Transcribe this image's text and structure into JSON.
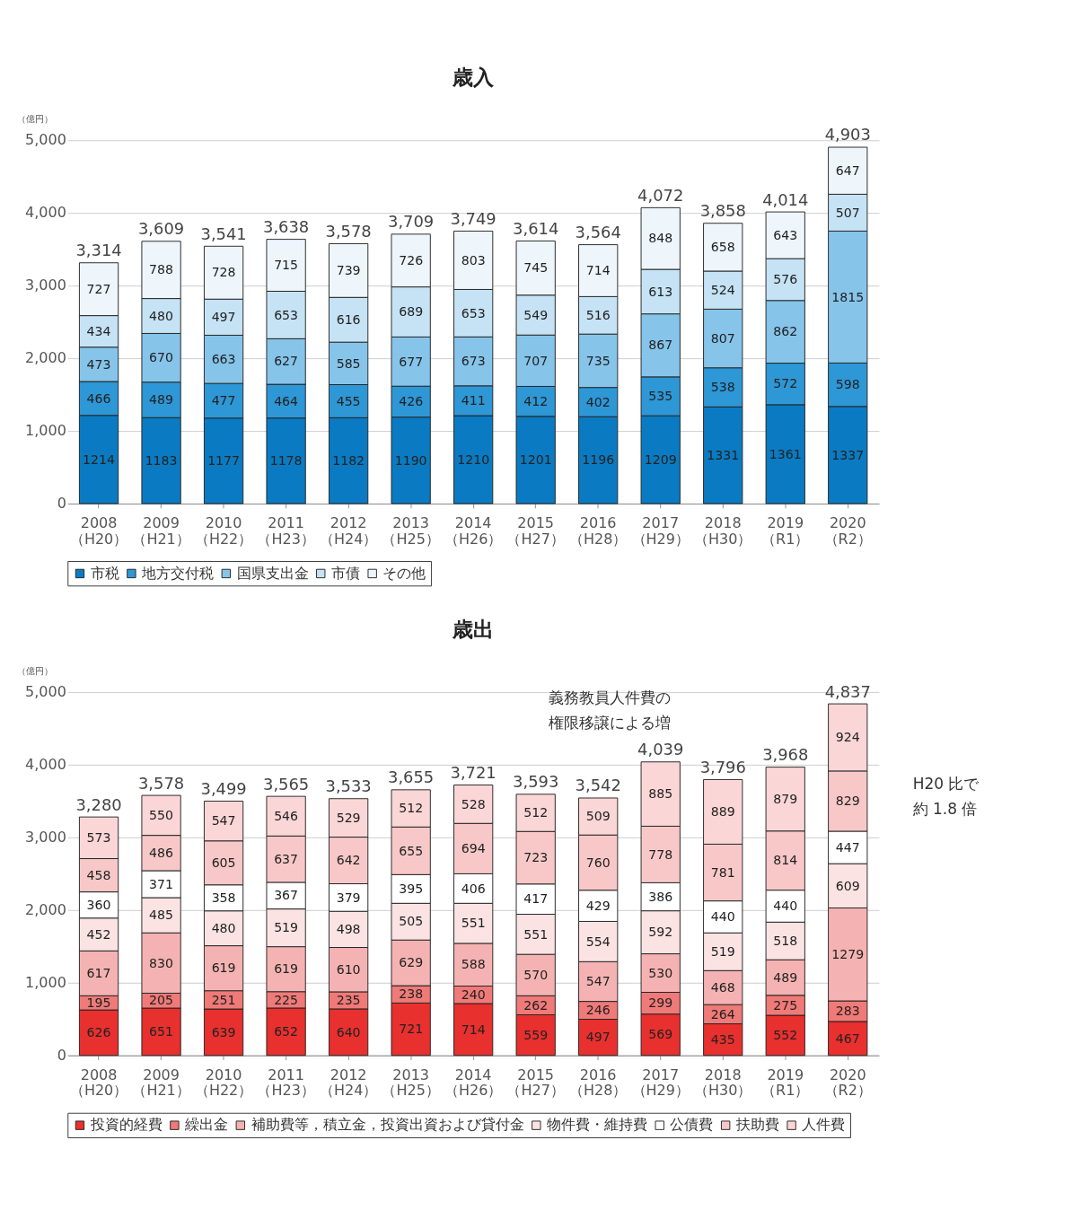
{
  "chart_data": [
    {
      "type": "bar",
      "stacked": true,
      "title": "歳入",
      "ylabel": "（億円）",
      "categories": [
        "2008\n（H20）",
        "2009\n（H21）",
        "2010\n（H22）",
        "2011\n（H23）",
        "2012\n（H24）",
        "2013\n（H25）",
        "2014\n（H26）",
        "2015\n（H27）",
        "2016\n（H28）",
        "2017\n（H29）",
        "2018\n（H30）",
        "2019\n（R1）",
        "2020\n（R2）"
      ],
      "series": [
        {
          "name": "市税",
          "color": "#0a7bc2",
          "values": [
            1214,
            1183,
            1177,
            1178,
            1182,
            1190,
            1210,
            1201,
            1196,
            1209,
            1331,
            1361,
            1337
          ]
        },
        {
          "name": "地方交付税",
          "color": "#2e97d6",
          "values": [
            466,
            489,
            477,
            464,
            455,
            426,
            411,
            412,
            402,
            535,
            538,
            572,
            598
          ]
        },
        {
          "name": "国県支出金",
          "color": "#86c4ea",
          "values": [
            473,
            670,
            663,
            627,
            585,
            677,
            673,
            707,
            735,
            867,
            807,
            862,
            1815
          ]
        },
        {
          "name": "市債",
          "color": "#c6e3f5",
          "values": [
            434,
            480,
            497,
            653,
            616,
            689,
            653,
            549,
            516,
            613,
            524,
            576,
            507
          ]
        },
        {
          "name": "その他",
          "color": "#eef6fc",
          "values": [
            727,
            788,
            728,
            715,
            739,
            726,
            803,
            745,
            714,
            848,
            658,
            643,
            647
          ]
        }
      ],
      "totals": [
        "3,314",
        "3,609",
        "3,541",
        "3,638",
        "3,578",
        "3,709",
        "3,749",
        "3,614",
        "3,564",
        "4,072",
        "3,858",
        "4,014",
        "4,903"
      ],
      "data_labels": true,
      "ylim": [
        0,
        5000
      ],
      "yticks": [
        0,
        {
          "value": 1000,
          "label": "1,000"
        },
        {
          "value": 2000,
          "label": "2,000"
        },
        {
          "value": 3000,
          "label": "3,000"
        },
        {
          "value": 4000,
          "label": "4,000"
        },
        {
          "value": 5000,
          "label": "5,000"
        }
      ],
      "grid": "y",
      "legend": "bottom"
    },
    {
      "type": "bar",
      "stacked": true,
      "title": "歳出",
      "ylabel": "（億円）",
      "categories": [
        "2008\n（H20）",
        "2009\n（H21）",
        "2010\n（H22）",
        "2011\n（H23）",
        "2012\n（H24）",
        "2013\n（H25）",
        "2014\n（H26）",
        "2015\n（H27）",
        "2016\n（H28）",
        "2017\n（H29）",
        "2018\n（H30）",
        "2019\n（R1）",
        "2020\n（R2）"
      ],
      "series": [
        {
          "name": "投資的経費",
          "color": "#e8302e",
          "values": [
            626,
            651,
            639,
            652,
            640,
            721,
            714,
            559,
            497,
            569,
            435,
            552,
            467
          ]
        },
        {
          "name": "繰出金",
          "color": "#ef7a78",
          "values": [
            195,
            205,
            251,
            225,
            235,
            238,
            240,
            262,
            246,
            299,
            264,
            275,
            283
          ]
        },
        {
          "name": "補助費等，積立金，投資出資および貸付金",
          "color": "#f4b3b2",
          "values": [
            617,
            830,
            619,
            619,
            610,
            629,
            588,
            570,
            547,
            530,
            468,
            489,
            1279
          ]
        },
        {
          "name": "物件費・維持費",
          "color": "#fbe3e3",
          "values": [
            452,
            485,
            480,
            519,
            498,
            505,
            551,
            551,
            554,
            592,
            519,
            518,
            609
          ]
        },
        {
          "name": "公債費",
          "color": "#ffffff",
          "values": [
            360,
            371,
            358,
            367,
            379,
            395,
            406,
            417,
            429,
            386,
            440,
            440,
            447
          ]
        },
        {
          "name": "扶助費",
          "color": "#f8c8c8",
          "values": [
            458,
            486,
            605,
            637,
            642,
            655,
            694,
            723,
            760,
            778,
            781,
            814,
            829
          ]
        },
        {
          "name": "人件費",
          "color": "#fbd6d6",
          "values": [
            573,
            550,
            547,
            546,
            529,
            512,
            528,
            512,
            509,
            885,
            889,
            879,
            924
          ]
        }
      ],
      "totals": [
        "3,280",
        "3,578",
        "3,499",
        "3,565",
        "3,533",
        "3,655",
        "3,721",
        "3,593",
        "3,542",
        "4,039",
        "3,796",
        "3,968",
        "4,837"
      ],
      "annotations": [
        {
          "text": "義務教員人件費の権限移譲による増",
          "x": "2017\n（H29）",
          "y": 4039
        },
        "H20 比で約 1.8 倍"
      ],
      "data_labels": true,
      "ylim": [
        0,
        5000
      ],
      "yticks": [
        0,
        {
          "value": 1000,
          "label": "1,000"
        },
        {
          "value": 2000,
          "label": "2,000"
        },
        {
          "value": 3000,
          "label": "3,000"
        },
        {
          "value": 4000,
          "label": "4,000"
        },
        {
          "value": 5000,
          "label": "5,000"
        }
      ],
      "grid": "y",
      "legend": "bottom"
    }
  ]
}
